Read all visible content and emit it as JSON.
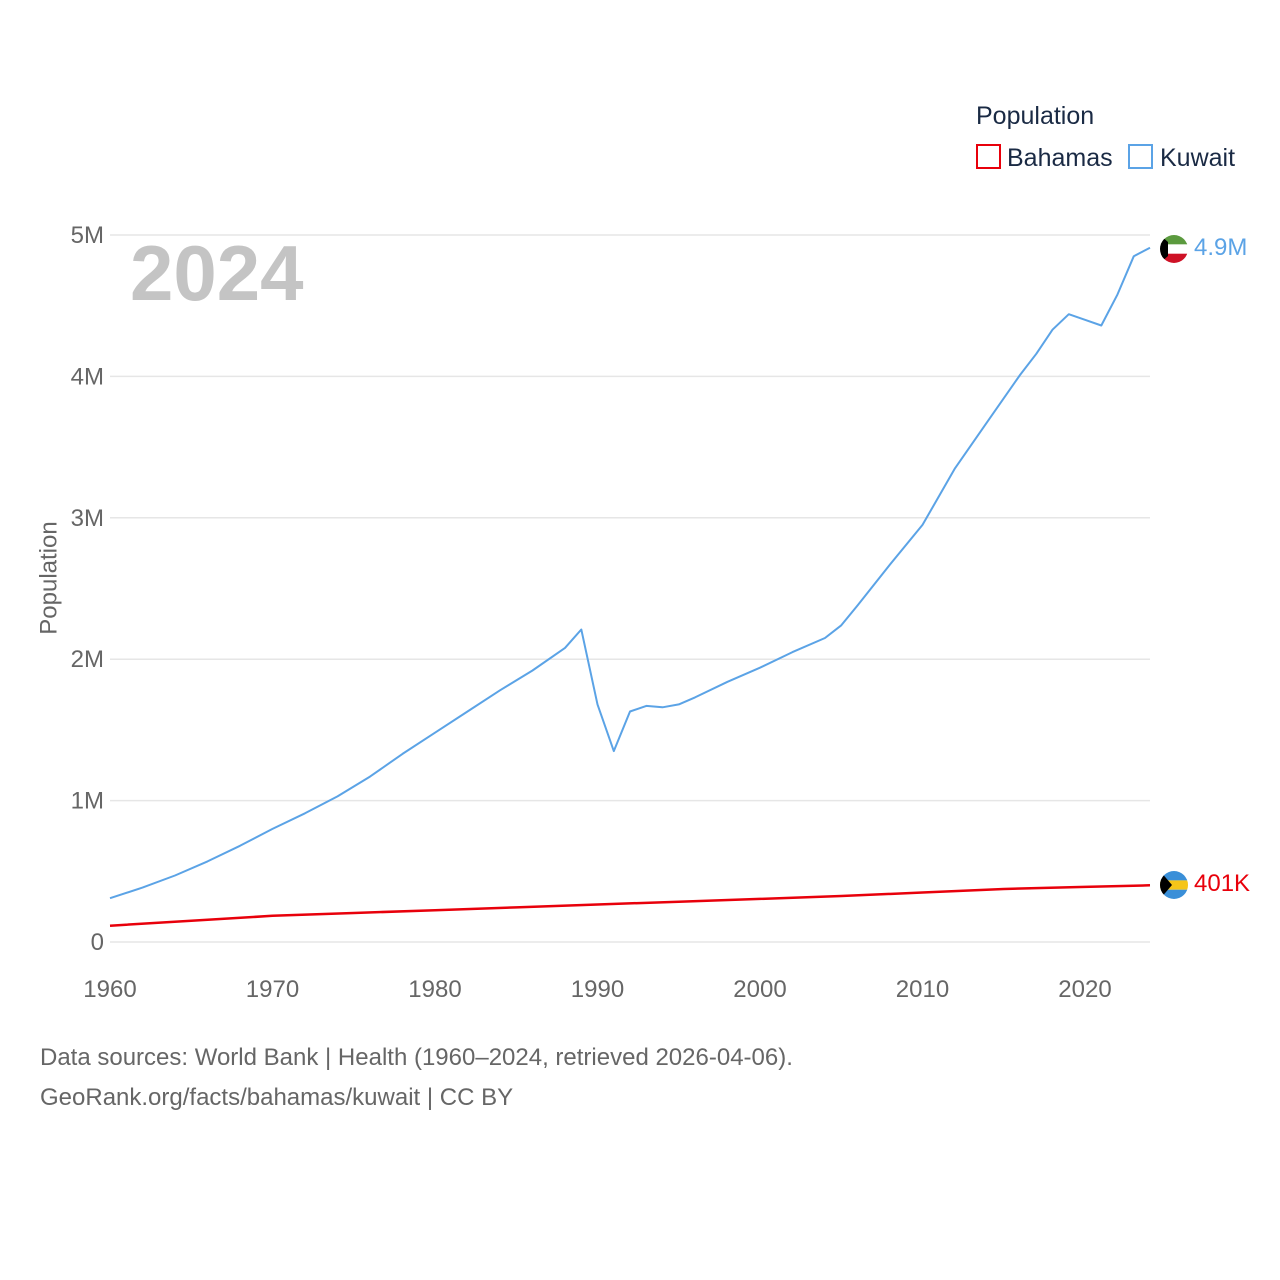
{
  "colors": {
    "bahamas": "#e8000b",
    "kuwait": "#5ba3e6",
    "grid": "#e6e6e6",
    "tick_text": "#666666",
    "legend_text": "#1a2a44",
    "year_text": "#c4c4c4"
  },
  "legend": {
    "title": "Population",
    "items": [
      {
        "label": "Bahamas",
        "color": "#e8000b"
      },
      {
        "label": "Kuwait",
        "color": "#5ba3e6"
      }
    ]
  },
  "year_overlay": "2024",
  "end_labels": {
    "kuwait": "4.9M",
    "bahamas": "401K"
  },
  "flags": {
    "kuwait": "kuwait-flag-icon",
    "bahamas": "bahamas-flag-icon"
  },
  "source": {
    "line1": "Data sources: World Bank | Health (1960–2024, retrieved 2026-04-06).",
    "line2": "GeoRank.org/facts/bahamas/kuwait | CC BY"
  },
  "chart_data": {
    "type": "line",
    "title": "",
    "xlabel": "",
    "ylabel": "Population",
    "xlim": [
      1960,
      2024
    ],
    "ylim": [
      0,
      5000000
    ],
    "grid": true,
    "legend_position": "top-right",
    "x_ticks": [
      1960,
      1970,
      1980,
      1990,
      2000,
      2010,
      2020
    ],
    "x_tick_labels": [
      "1960",
      "1970",
      "1980",
      "1990",
      "2000",
      "2010",
      "2020"
    ],
    "y_ticks": [
      0,
      1000000,
      2000000,
      3000000,
      4000000,
      5000000
    ],
    "y_tick_labels": [
      "0",
      "1M",
      "2M",
      "3M",
      "4M",
      "5M"
    ],
    "series": [
      {
        "name": "Bahamas",
        "x": [
          1960,
          1965,
          1970,
          1975,
          1980,
          1985,
          1990,
          1995,
          2000,
          2005,
          2010,
          2015,
          2020,
          2024
        ],
        "values": [
          115000,
          150000,
          185000,
          205000,
          225000,
          245000,
          265000,
          285000,
          305000,
          325000,
          350000,
          375000,
          390000,
          401000
        ]
      },
      {
        "name": "Kuwait",
        "x": [
          1960,
          1962,
          1964,
          1966,
          1968,
          1970,
          1972,
          1974,
          1976,
          1978,
          1980,
          1982,
          1984,
          1986,
          1988,
          1989,
          1990,
          1991,
          1992,
          1993,
          1994,
          1995,
          1996,
          1998,
          2000,
          2002,
          2004,
          2005,
          2006,
          2008,
          2010,
          2012,
          2014,
          2016,
          2017,
          2018,
          2019,
          2020,
          2021,
          2022,
          2023,
          2024
        ],
        "values": [
          310000,
          385000,
          470000,
          570000,
          680000,
          800000,
          910000,
          1030000,
          1170000,
          1330000,
          1480000,
          1630000,
          1780000,
          1920000,
          2080000,
          2210000,
          1680000,
          1350000,
          1630000,
          1670000,
          1660000,
          1680000,
          1730000,
          1840000,
          1940000,
          2050000,
          2150000,
          2240000,
          2380000,
          2670000,
          2950000,
          3350000,
          3680000,
          4010000,
          4160000,
          4330000,
          4440000,
          4400000,
          4360000,
          4580000,
          4850000,
          4910000
        ]
      }
    ]
  }
}
